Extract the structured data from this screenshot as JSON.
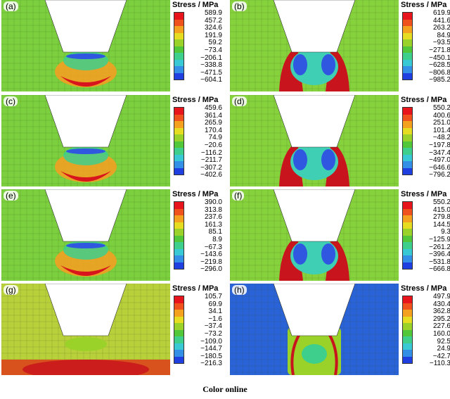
{
  "panels": [
    {
      "label": "(a)",
      "legend_title": "Stress / MPa",
      "ticks": [
        "589.9",
        "457.2",
        "324.6",
        "191.9",
        "59.2",
        "−73.4",
        "−206.1",
        "−338.8",
        "−471.5",
        "−604.1"
      ],
      "background": "#7ccf3e",
      "pattern": "a"
    },
    {
      "label": "(b)",
      "legend_title": "Stress / MPa",
      "ticks": [
        "619.9",
        "441.6",
        "263.2",
        "84.9",
        "−93.5",
        "−271.8",
        "−450.1",
        "−628.5",
        "−806.8",
        "−985.2"
      ],
      "background": "#86d23c",
      "pattern": "b"
    },
    {
      "label": "(c)",
      "legend_title": "Stress / MPa",
      "ticks": [
        "459.6",
        "361.4",
        "265.9",
        "170.4",
        "74.9",
        "−20.6",
        "−116.2",
        "−211.7",
        "−307.2",
        "−402.6"
      ],
      "background": "#7ccf3e",
      "pattern": "a"
    },
    {
      "label": "(d)",
      "legend_title": "Stress / MPa",
      "ticks": [
        "550.2",
        "400.6",
        "251.0",
        "101.4",
        "−48.2",
        "−197.8",
        "−347.4",
        "−497.0",
        "−646.6",
        "−796.2"
      ],
      "background": "#86d23c",
      "pattern": "b"
    },
    {
      "label": "(e)",
      "legend_title": "Stress / MPa",
      "ticks": [
        "390.0",
        "313.8",
        "237.6",
        "161.3",
        "85.1",
        "8.9",
        "−67.3",
        "−143.6",
        "−219.8",
        "−296.0"
      ],
      "background": "#7ccf3e",
      "pattern": "a"
    },
    {
      "label": "(f)",
      "legend_title": "Stress / MPa",
      "ticks": [
        "550.2",
        "415.0",
        "279.8",
        "144.5",
        "9.3",
        "−125.9",
        "−261.2",
        "−396.4",
        "−531.8",
        "−666.8"
      ],
      "background": "#86d23c",
      "pattern": "b"
    },
    {
      "label": "(g)",
      "legend_title": "Stress / MPa",
      "ticks": [
        "105.7",
        "69.9",
        "34.1",
        "−1.6",
        "−37.4",
        "−73.2",
        "−109.0",
        "−144.7",
        "−180.5",
        "−216.3"
      ],
      "background": "#b8d03a",
      "pattern": "g"
    },
    {
      "label": "(h)",
      "legend_title": "Stress / MPa",
      "ticks": [
        "497.9",
        "430.4",
        "362.8",
        "295.2",
        "227.6",
        "160.0",
        "92.5",
        "24.9",
        "−42.7",
        "−110.3"
      ],
      "background": "#2a63d8",
      "pattern": "h"
    }
  ],
  "colorbar": [
    "#e8141c",
    "#f0521d",
    "#f3a11f",
    "#e6dc22",
    "#9ad22a",
    "#52c73a",
    "#3ecf8c",
    "#39c9d4",
    "#3490e6",
    "#1f3fe0"
  ],
  "caption": "Color online"
}
